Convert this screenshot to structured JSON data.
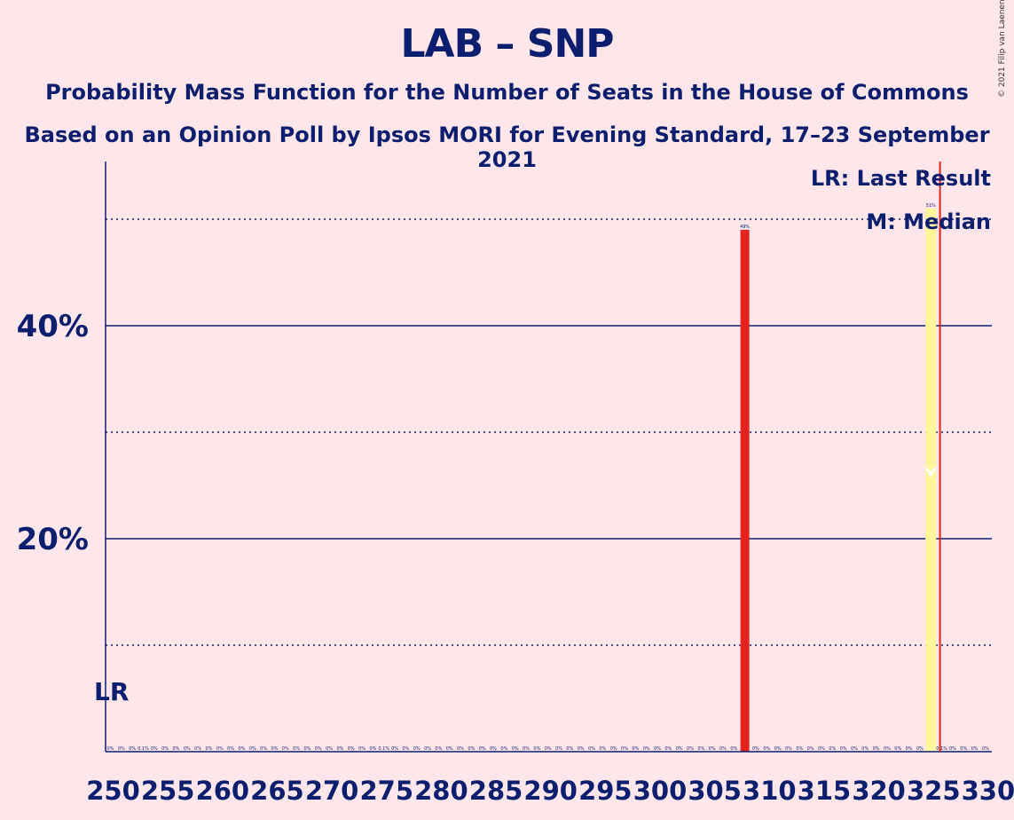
{
  "title": "LAB – SNP",
  "subtitle_1": "Probability Mass Function for the Number of Seats in the House of Commons",
  "subtitle_2": "Based on an Opinion Poll by Ipsos MORI for Evening Standard, 17–23 September 2021",
  "credit": "© 2021 Filip van Laenen",
  "legend": {
    "last_result": "LR: Last Result",
    "median": "M: Median"
  },
  "lr_marker": "LR",
  "colors": {
    "background": "#ffe6ea",
    "axis_text": "#0b1f6e",
    "bar": "#e3231c",
    "median_highlight": "#fff59a",
    "last_result_line": "#e3231c"
  },
  "chart_data": {
    "type": "bar",
    "title": "LAB – SNP",
    "x_range": [
      250,
      330
    ],
    "y_range": [
      0,
      55
    ],
    "y_ticks": [
      {
        "value": 20,
        "label": "20%"
      },
      {
        "value": 40,
        "label": "40%"
      }
    ],
    "y_gridlines_solid": [
      20,
      40
    ],
    "y_gridlines_dotted": [
      10,
      30,
      50
    ],
    "x_tick_labels": [
      "250",
      "255",
      "260",
      "265",
      "270",
      "275",
      "280",
      "285",
      "290",
      "295",
      "300",
      "305",
      "310",
      "315",
      "320",
      "325",
      "330"
    ],
    "bars": [
      {
        "seats": 308,
        "value": 49,
        "label": "49%"
      },
      {
        "seats": 325,
        "value": 51,
        "label": "51%"
      }
    ],
    "small_labels": [
      {
        "seats": 253,
        "label": "0.1%"
      },
      {
        "seats": 275,
        "label": "0.1%"
      },
      {
        "seats": 326,
        "label": "0.1%"
      }
    ],
    "zero_label": "0%",
    "median": 325,
    "last_result": 326,
    "lr_label_position": "bottom-left"
  }
}
